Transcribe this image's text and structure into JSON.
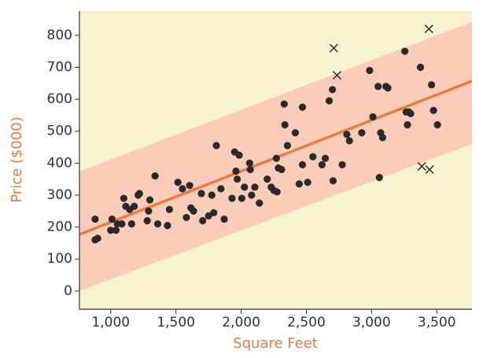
{
  "chart_data": {
    "type": "scatter",
    "x_label": "Square Feet",
    "y_label": "Price ($000)",
    "axis_title_color": "#ee7b3e",
    "background": "#f8f3cc",
    "xlim": [
      760,
      3770
    ],
    "ylim": [
      -57,
      876
    ],
    "xticks": [
      {
        "value": 1000,
        "label": "1,000"
      },
      {
        "value": 1500,
        "label": "1,500"
      },
      {
        "value": 2000,
        "label": "2,000"
      },
      {
        "value": 2500,
        "label": "2,500"
      },
      {
        "value": 3000,
        "label": "3,000"
      },
      {
        "value": 3500,
        "label": "3,500"
      }
    ],
    "yticks": [
      0,
      100,
      200,
      300,
      400,
      500,
      600,
      700,
      800
    ],
    "grid": false,
    "band": {
      "color": "#fbcdb8",
      "x": [
        760,
        3770
      ],
      "upper": [
        374,
        842
      ],
      "lower": [
        0,
        460
      ]
    },
    "fit": {
      "color": "#ee7b3e",
      "x": [
        760,
        3770
      ],
      "y": [
        177,
        657
      ]
    },
    "series": [
      {
        "marker": "dot",
        "color": "#2a2a2a",
        "x": [
          880,
          880,
          900,
          1000,
          1010,
          1040,
          1050,
          1085,
          1100,
          1115,
          1145,
          1160,
          1180,
          1210,
          1220,
          1280,
          1290,
          1300,
          1340,
          1360,
          1435,
          1450,
          1515,
          1550,
          1580,
          1605,
          1615,
          1635,
          1695,
          1705,
          1750,
          1775,
          1790,
          1810,
          1845,
          1870,
          1930,
          1950,
          1960,
          1970,
          1985,
          2005,
          2025,
          2065,
          2070,
          2080,
          2105,
          2140,
          2200,
          2230,
          2250,
          2270,
          2275,
          2285,
          2310,
          2330,
          2335,
          2355,
          2415,
          2445,
          2470,
          2470,
          2510,
          2550,
          2620,
          2645,
          2675,
          2700,
          2705,
          2775,
          2810,
          2830,
          2925,
          2985,
          3010,
          3050,
          3060,
          3070,
          3085,
          3110,
          3125,
          3255,
          3265,
          3275,
          3285,
          3300,
          3375,
          3460,
          3475,
          3505
        ],
        "y": [
          225,
          160,
          165,
          190,
          225,
          190,
          210,
          210,
          290,
          265,
          255,
          210,
          265,
          300,
          305,
          220,
          250,
          285,
          360,
          210,
          205,
          255,
          340,
          320,
          230,
          330,
          260,
          250,
          305,
          220,
          235,
          300,
          245,
          455,
          320,
          225,
          290,
          435,
          375,
          350,
          425,
          290,
          325,
          400,
          380,
          300,
          325,
          275,
          350,
          325,
          315,
          415,
          310,
          385,
          380,
          585,
          520,
          455,
          495,
          335,
          575,
          395,
          340,
          420,
          395,
          415,
          595,
          630,
          345,
          395,
          490,
          470,
          495,
          690,
          545,
          640,
          355,
          495,
          480,
          640,
          635,
          750,
          560,
          520,
          560,
          555,
          700,
          645,
          565,
          520
        ]
      },
      {
        "marker": "x",
        "color": "#2a2a2a",
        "x": [
          2710,
          2735,
          3440,
          3385,
          3445
        ],
        "y": [
          760,
          675,
          820,
          390,
          380
        ]
      }
    ]
  }
}
